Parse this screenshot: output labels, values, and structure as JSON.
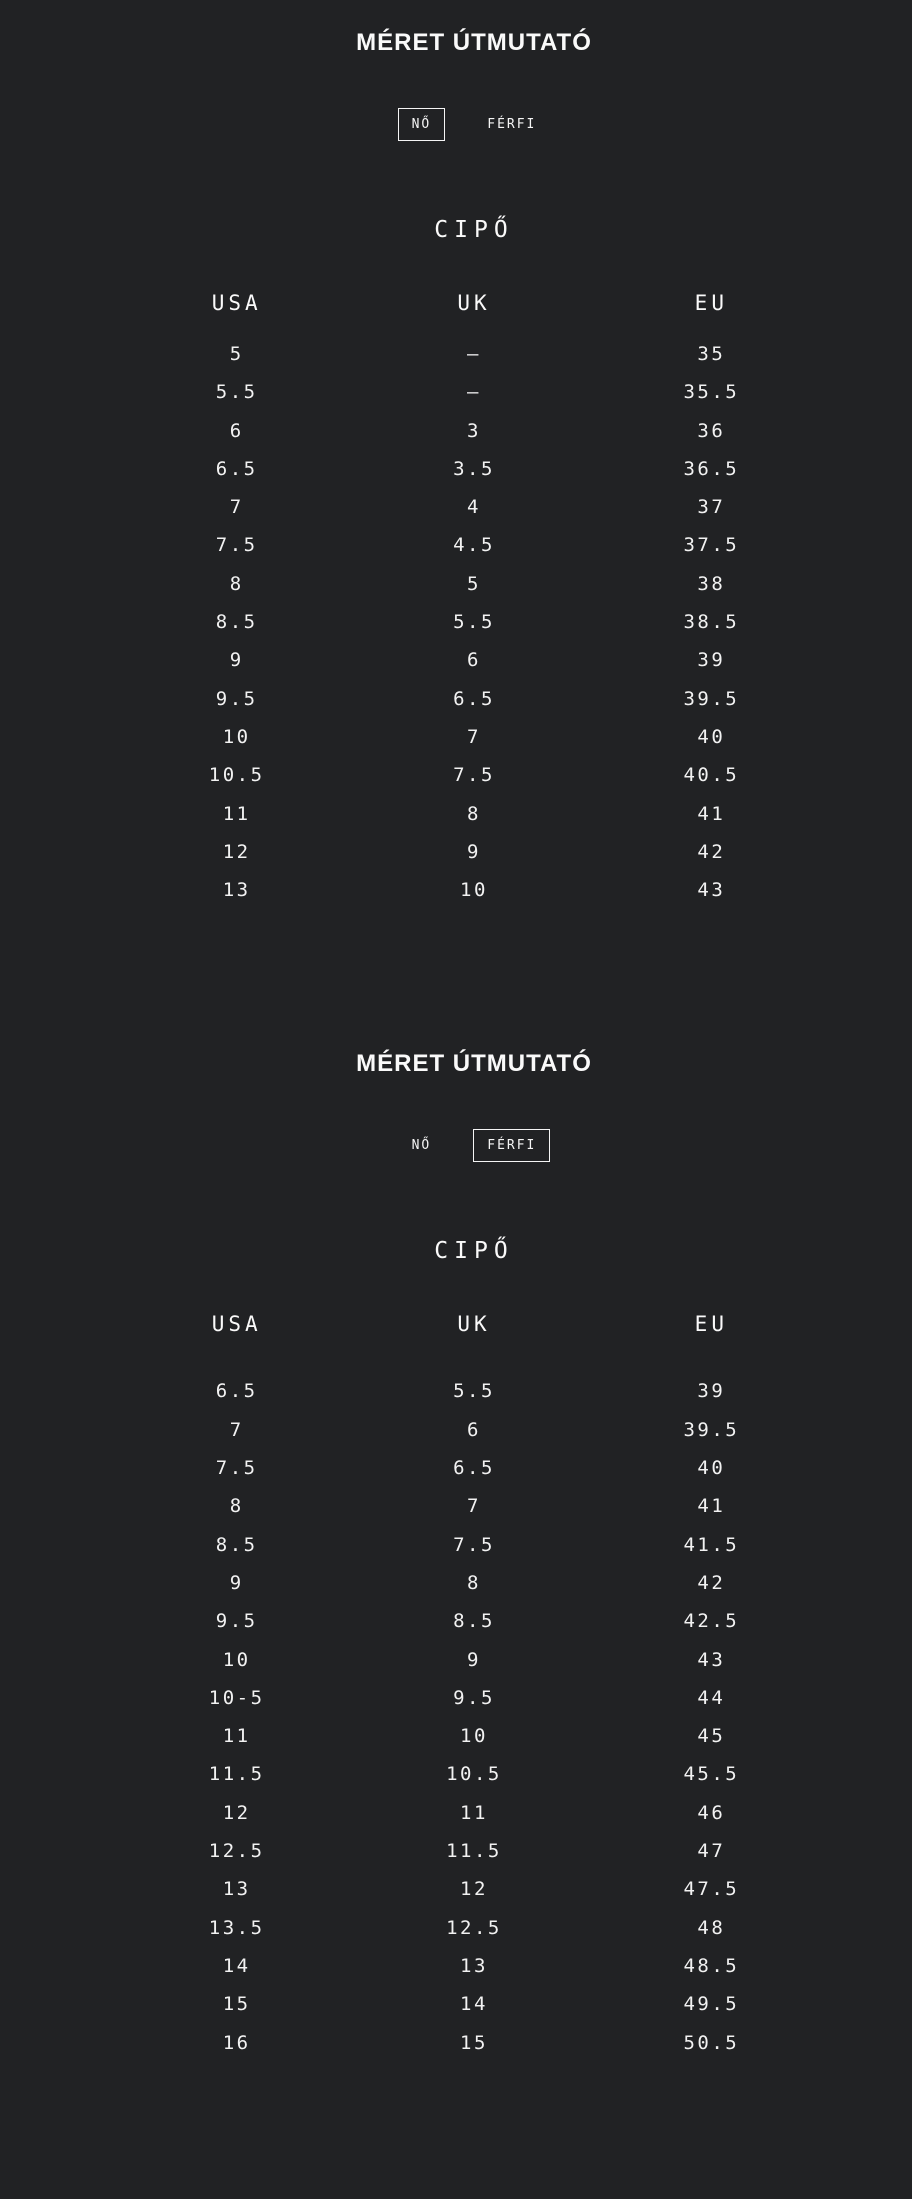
{
  "page": {
    "background": "#212224",
    "text_color": "#f5f5f5",
    "active_tab_border": "#f5f5f5"
  },
  "sections": [
    {
      "id": "women",
      "title": "MÉRET ÚTMUTATÓ",
      "tabs": [
        {
          "id": "women",
          "label": "NŐ",
          "active": true
        },
        {
          "id": "men",
          "label": "FÉRFI",
          "active": false
        }
      ],
      "category": "CIPŐ",
      "table": {
        "headers": [
          "USA",
          "UK",
          "EU"
        ],
        "rows": [
          [
            "5",
            "–",
            "35"
          ],
          [
            "5.5",
            "–",
            "35.5"
          ],
          [
            "6",
            "3",
            "36"
          ],
          [
            "6.5",
            "3.5",
            "36.5"
          ],
          [
            "7",
            "4",
            "37"
          ],
          [
            "7.5",
            "4.5",
            "37.5"
          ],
          [
            "8",
            "5",
            "38"
          ],
          [
            "8.5",
            "5.5",
            "38.5"
          ],
          [
            "9",
            "6",
            "39"
          ],
          [
            "9.5",
            "6.5",
            "39.5"
          ],
          [
            "10",
            "7",
            "40"
          ],
          [
            "10.5",
            "7.5",
            "40.5"
          ],
          [
            "11",
            "8",
            "41"
          ],
          [
            "12",
            "9",
            "42"
          ],
          [
            "13",
            "10",
            "43"
          ]
        ]
      }
    },
    {
      "id": "men",
      "title": "MÉRET ÚTMUTATÓ",
      "tabs": [
        {
          "id": "women",
          "label": "NŐ",
          "active": false
        },
        {
          "id": "men",
          "label": "FÉRFI",
          "active": true
        }
      ],
      "category": "CIPŐ",
      "table": {
        "headers": [
          "USA",
          "UK",
          "EU"
        ],
        "rows": [
          [
            "6.5",
            "5.5",
            "39"
          ],
          [
            "7",
            "6",
            "39.5"
          ],
          [
            "7.5",
            "6.5",
            "40"
          ],
          [
            "8",
            "7",
            "41"
          ],
          [
            "8.5",
            "7.5",
            "41.5"
          ],
          [
            "9",
            "8",
            "42"
          ],
          [
            "9.5",
            "8.5",
            "42.5"
          ],
          [
            "10",
            "9",
            "43"
          ],
          [
            "10-5",
            "9.5",
            "44"
          ],
          [
            "11",
            "10",
            "45"
          ],
          [
            "11.5",
            "10.5",
            "45.5"
          ],
          [
            "12",
            "11",
            "46"
          ],
          [
            "12.5",
            "11.5",
            "47"
          ],
          [
            "13",
            "12",
            "47.5"
          ],
          [
            "13.5",
            "12.5",
            "48"
          ],
          [
            "14",
            "13",
            "48.5"
          ],
          [
            "15",
            "14",
            "49.5"
          ],
          [
            "16",
            "15",
            "50.5"
          ]
        ]
      }
    }
  ]
}
